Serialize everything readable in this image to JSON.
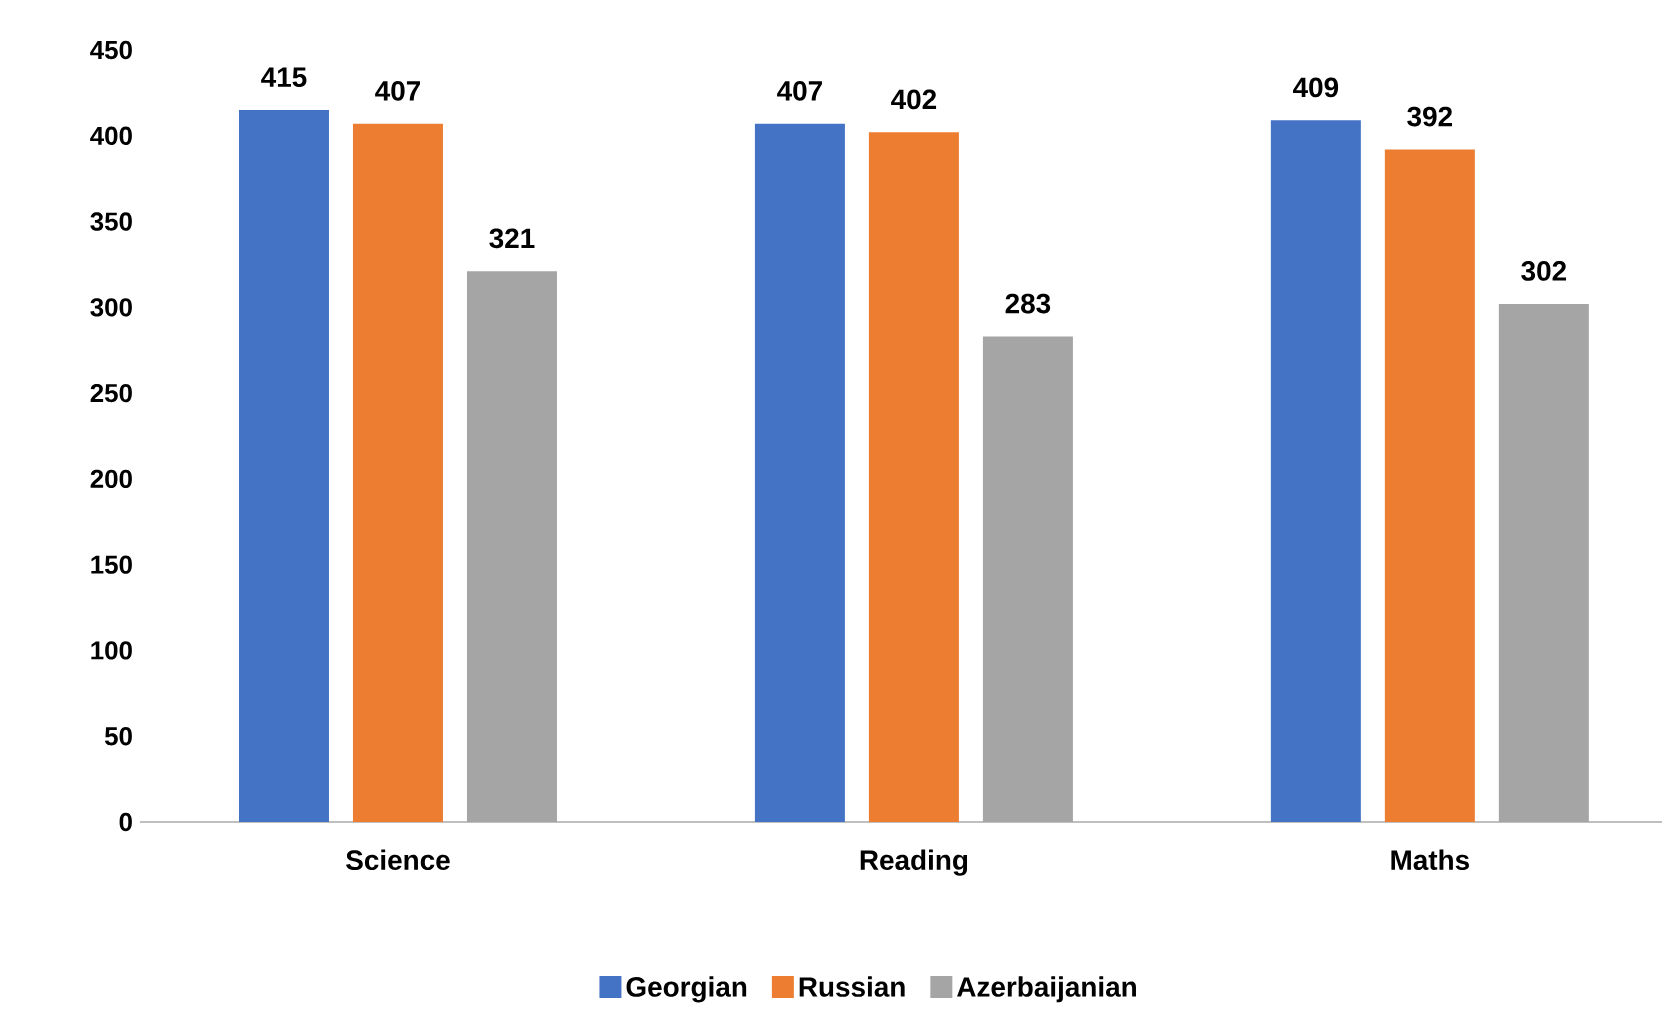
{
  "chart_data": {
    "type": "bar",
    "categories": [
      "Science",
      "Reading",
      "Maths"
    ],
    "series": [
      {
        "name": "Georgian",
        "color": "#4472c4",
        "values": [
          415,
          407,
          409
        ]
      },
      {
        "name": "Russian",
        "color": "#ed7d31",
        "values": [
          407,
          402,
          392
        ]
      },
      {
        "name": "Azerbaijanian",
        "color": "#a5a5a5",
        "values": [
          321,
          283,
          302
        ]
      }
    ],
    "ylim": [
      0,
      450
    ],
    "yticks": [
      0,
      50,
      100,
      150,
      200,
      250,
      300,
      350,
      400,
      450
    ],
    "data_labels": true,
    "legend": "bottom",
    "grid": false
  }
}
